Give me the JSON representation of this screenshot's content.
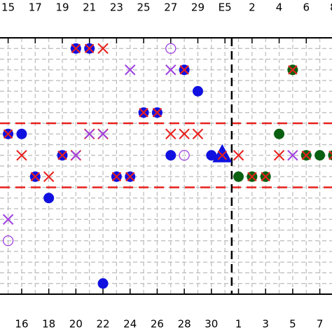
{
  "chart_data": {
    "type": "scatter",
    "xlim": [
      -0.6,
      23.9
    ],
    "ylim": [
      -0.5,
      11.5
    ],
    "x2ticks": [
      {
        "value": 0,
        "label": "15"
      },
      {
        "value": 2,
        "label": "17"
      },
      {
        "value": 4,
        "label": "19"
      },
      {
        "value": 6,
        "label": "21"
      },
      {
        "value": 8,
        "label": "23"
      },
      {
        "value": 10,
        "label": "25"
      },
      {
        "value": 12,
        "label": "27"
      },
      {
        "value": 14,
        "label": "29"
      },
      {
        "value": 16,
        "label": "E5"
      },
      {
        "value": 18,
        "label": "2"
      },
      {
        "value": 20,
        "label": "4"
      },
      {
        "value": 22,
        "label": "6"
      },
      {
        "value": 24,
        "label": "8"
      }
    ],
    "xticks": [
      {
        "value": 1,
        "label": "16"
      },
      {
        "value": 3,
        "label": "18"
      },
      {
        "value": 5,
        "label": "20"
      },
      {
        "value": 7,
        "label": "22"
      },
      {
        "value": 9,
        "label": "24"
      },
      {
        "value": 11,
        "label": "26"
      },
      {
        "value": 13,
        "label": "28"
      },
      {
        "value": 15,
        "label": "30"
      },
      {
        "value": 17,
        "label": "1"
      },
      {
        "value": 19,
        "label": "3"
      },
      {
        "value": 21,
        "label": "5"
      },
      {
        "value": 23,
        "label": "7"
      }
    ],
    "yticks": [
      0,
      0.5,
      1,
      1.5,
      2,
      2.5,
      3,
      3.5,
      4,
      4.5,
      5,
      5.5,
      6,
      6.5,
      7,
      7.5,
      8,
      8.5,
      9,
      9.5,
      10,
      10.5,
      11
    ],
    "grid": true,
    "hlines": [
      3.5,
      6.5
    ],
    "hline_color": "#e8201c",
    "vlines": [
      16.5
    ],
    "vline_color": "#000000",
    "series": [
      {
        "marker": "circle-x",
        "color": "#1010e0",
        "cross_color": "#e8201c",
        "x": [
          5,
          6,
          13,
          10,
          11,
          0,
          4,
          2,
          8,
          9
        ],
        "values": [
          0,
          0,
          1,
          3,
          3,
          4,
          5,
          6,
          6,
          6
        ]
      },
      {
        "marker": "circle",
        "color": "#1010e0",
        "x": [
          14,
          1,
          12,
          15,
          3,
          7
        ],
        "values": [
          2,
          4,
          5,
          5,
          7,
          11
        ]
      },
      {
        "marker": "x",
        "color": "#e8201c",
        "x": [
          7,
          12,
          13,
          14,
          1,
          17,
          20,
          3
        ],
        "values": [
          0,
          4,
          4,
          4,
          5,
          5,
          5,
          6
        ]
      },
      {
        "marker": "x",
        "color": "#a040e0",
        "x": [
          9,
          12,
          21,
          0
        ],
        "values": [
          1,
          1,
          5,
          8
        ]
      },
      {
        "marker": "xx",
        "color": "#a040e0",
        "cross_color": "#e8201c",
        "x": [
          6,
          7,
          5
        ],
        "values": [
          4,
          4,
          5
        ]
      },
      {
        "marker": "open-circle",
        "color": "#a040e0",
        "x": [
          12,
          13,
          0
        ],
        "values": [
          0,
          5,
          9
        ]
      },
      {
        "marker": "circle",
        "color": "#0a6010",
        "x": [
          20,
          23,
          17
        ],
        "values": [
          4,
          5,
          6
        ]
      },
      {
        "marker": "circle-x",
        "color": "#0a6010",
        "cross_color": "#e8201c",
        "x": [
          21,
          22,
          24,
          18,
          19
        ],
        "values": [
          1,
          5,
          5,
          6,
          6
        ]
      },
      {
        "marker": "triangle",
        "color": "#1010e0",
        "x": [
          15.8
        ],
        "values": [
          5
        ]
      }
    ]
  }
}
